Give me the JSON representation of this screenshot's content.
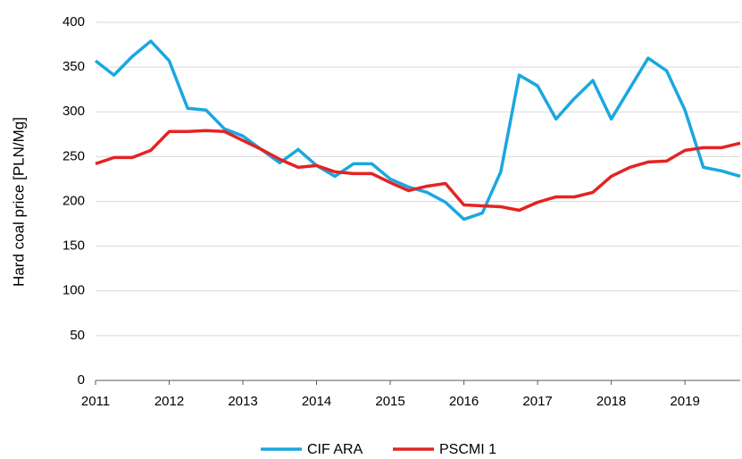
{
  "chart_data": {
    "type": "line",
    "y_label": "Hard coal price [PLN/Mg]",
    "x": [
      2011,
      2011.25,
      2011.5,
      2011.75,
      2012,
      2012.25,
      2012.5,
      2012.75,
      2013,
      2013.25,
      2013.5,
      2013.75,
      2014,
      2014.25,
      2014.5,
      2014.75,
      2015,
      2015.25,
      2015.5,
      2015.75,
      2016,
      2016.25,
      2016.5,
      2016.75,
      2017,
      2017.25,
      2017.5,
      2017.75,
      2018,
      2018.25,
      2018.5,
      2018.75,
      2019,
      2019.25,
      2019.5,
      2019.75
    ],
    "series": [
      {
        "name": "CIF ARA",
        "color": "#1aa7e0",
        "values": [
          357,
          341,
          362,
          379,
          357,
          304,
          302,
          281,
          273,
          258,
          243,
          258,
          240,
          228,
          242,
          242,
          225,
          216,
          210,
          199,
          180,
          187,
          233,
          341,
          329,
          292,
          315,
          335,
          292,
          326,
          360,
          346,
          302,
          238,
          234,
          228
        ]
      },
      {
        "name": "PSCMI 1",
        "color": "#e42323",
        "values": [
          242,
          249,
          249,
          257,
          278,
          278,
          279,
          278,
          268,
          258,
          247,
          238,
          240,
          233,
          231,
          231,
          221,
          212,
          217,
          220,
          196,
          195,
          194,
          190,
          199,
          205,
          205,
          210,
          228,
          238,
          244,
          245,
          257,
          260,
          260,
          265
        ]
      }
    ],
    "xlim": [
      2011,
      2019.75
    ],
    "xticks": [
      2011,
      2012,
      2013,
      2014,
      2015,
      2016,
      2017,
      2018,
      2019
    ],
    "ylim": [
      0,
      400
    ],
    "yticks": [
      0,
      50,
      100,
      150,
      200,
      250,
      300,
      350,
      400
    ],
    "grid": true,
    "legend": "bottom"
  }
}
